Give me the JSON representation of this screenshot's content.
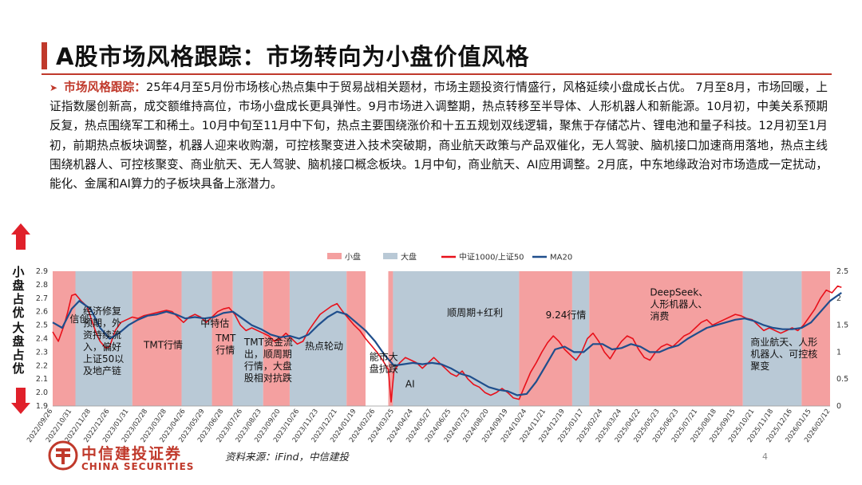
{
  "page": {
    "title": "A股市场风格跟踪：市场转向为小盘价值风格",
    "paragraph_lead": "市场风格跟踪：",
    "paragraph_body": "25年4月至5月份市场核心热点集中于贸易战相关题材，市场主题投资行情盛行，风格延续小盘成长占优。 7月至8月，市场回暖，上证指数屡创新高，成交额维持高位，市场小盘成长更具弹性。9月市场进入调整期，热点转移至半导体、人形机器人和新能源。10月初，中美关系预期反复，热点围绕军工和稀土。10月中旬至11月中下旬，热点主要围绕涨价和十五五规划双线逻辑，聚焦于存储芯片、锂电池和量子科技。12月初至1月初，前期热点板块调整，机器人迎来收购潮，可控核聚变进入技术突破期，商业航天政策与产品双催化，无人驾驶、脑机接口加速商用落地，热点主线围绕机器人、可控核聚变、商业航天、无人驾驶、脑机接口概念板块。1月中旬，商业航天、AI应用调整。2月底，中东地缘政治对市场造成一定扰动，能化、金属和AI算力的子板块具备上涨潜力。",
    "side_label_top": "小盘占优",
    "side_label_bottom": "大盘占优",
    "source": "资料来源：iFind，中信建投",
    "page_number": "4",
    "logo_cn": "中信建投证券",
    "logo_en": "CHINA SECURITIES",
    "colors": {
      "accent": "#c0392b",
      "small_cap": "#f4a0a0",
      "large_cap": "#b9c9d6",
      "ratio_line": "#e8101a",
      "ma_line": "#1f4e8c"
    }
  },
  "chart_data": {
    "type": "line",
    "legend": [
      "小盘",
      "大盘",
      "中证1000/上证50",
      "MA20"
    ],
    "legend_position": "top",
    "y_left": {
      "min": 1.9,
      "max": 2.9,
      "ticks": [
        "2.9",
        "2.8",
        "2.7",
        "2.6",
        "2.5",
        "2.4",
        "2.3",
        "2.2",
        "2.1",
        "2.0",
        "1.9"
      ]
    },
    "y_right": {
      "min": 0,
      "max": 2.5,
      "ticks": [
        "2.5",
        "2",
        "1.5",
        "1",
        "0.5",
        "0"
      ]
    },
    "x_ticks": [
      "2022/09/26",
      "2022/10/31",
      "2022/11/28",
      "2022/12/26",
      "2023/01/31",
      "2023/02/28",
      "2023/03/28",
      "2023/04/26",
      "2023/05/29",
      "2023/06/28",
      "2023/07/26",
      "2023/08/23",
      "2023/09/20",
      "2023/10/26",
      "2023/11/23",
      "2023/12/21",
      "2024/01/19",
      "2024/02/26",
      "2024/03/25",
      "2024/04/24",
      "2024/05/27",
      "2024/06/25",
      "2024/07/23",
      "2024/08/20",
      "2024/09/19",
      "2024/10/24",
      "2024/11/21",
      "2024/12/19",
      "2025/01/17",
      "2025/02/24",
      "2025/03/24",
      "2025/04/22",
      "2025/05/23",
      "2025/06/23",
      "2025/07/21",
      "2025/08/18",
      "2025/09/15",
      "2025/10/21",
      "2025/11/18",
      "2025/12/16",
      "2026/01/15",
      "2026/02/12"
    ],
    "regimes": [
      {
        "style": "small",
        "from": 0,
        "to": 1.2
      },
      {
        "style": "large",
        "from": 1.2,
        "to": 4.2
      },
      {
        "style": "small",
        "from": 4.2,
        "to": 6.8
      },
      {
        "style": "large",
        "from": 6.8,
        "to": 8.4
      },
      {
        "style": "small",
        "from": 8.4,
        "to": 9.5
      },
      {
        "style": "large",
        "from": 9.5,
        "to": 11.1
      },
      {
        "style": "small",
        "from": 11.1,
        "to": 12.5
      },
      {
        "style": "large",
        "from": 12.5,
        "to": 15.5
      },
      {
        "style": "small",
        "from": 15.5,
        "to": 16.5
      },
      {
        "style": "small",
        "from": 17.7,
        "to": 17.95
      },
      {
        "style": "large",
        "from": 17.95,
        "to": 24.6
      },
      {
        "style": "small",
        "from": 24.6,
        "to": 27.4
      },
      {
        "style": "large",
        "from": 27.4,
        "to": 28.3
      },
      {
        "style": "small",
        "from": 28.3,
        "to": 36.4
      },
      {
        "style": "large",
        "from": 36.4,
        "to": 39.5
      },
      {
        "style": "small",
        "from": 39.5,
        "to": 41.5
      }
    ],
    "series": [
      {
        "name": "中证1000/上证50",
        "axis": "left",
        "values": [
          [
            0,
            2.45
          ],
          [
            0.3,
            2.38
          ],
          [
            0.6,
            2.5
          ],
          [
            0.8,
            2.6
          ],
          [
            1.0,
            2.72
          ],
          [
            1.2,
            2.73
          ],
          [
            1.5,
            2.68
          ],
          [
            1.8,
            2.64
          ],
          [
            2.0,
            2.56
          ],
          [
            2.3,
            2.44
          ],
          [
            2.5,
            2.38
          ],
          [
            2.8,
            2.33
          ],
          [
            3.0,
            2.34
          ],
          [
            3.3,
            2.46
          ],
          [
            3.6,
            2.52
          ],
          [
            3.9,
            2.54
          ],
          [
            4.2,
            2.56
          ],
          [
            4.5,
            2.55
          ],
          [
            4.8,
            2.57
          ],
          [
            5.1,
            2.58
          ],
          [
            5.4,
            2.59
          ],
          [
            5.7,
            2.6
          ],
          [
            6.0,
            2.61
          ],
          [
            6.3,
            2.6
          ],
          [
            6.6,
            2.56
          ],
          [
            6.9,
            2.52
          ],
          [
            7.2,
            2.56
          ],
          [
            7.5,
            2.58
          ],
          [
            7.8,
            2.56
          ],
          [
            8.1,
            2.52
          ],
          [
            8.4,
            2.56
          ],
          [
            8.7,
            2.6
          ],
          [
            9.0,
            2.62
          ],
          [
            9.3,
            2.63
          ],
          [
            9.6,
            2.58
          ],
          [
            9.9,
            2.5
          ],
          [
            10.2,
            2.46
          ],
          [
            10.5,
            2.48
          ],
          [
            10.8,
            2.46
          ],
          [
            11.1,
            2.44
          ],
          [
            11.4,
            2.42
          ],
          [
            11.7,
            2.38
          ],
          [
            12.0,
            2.4
          ],
          [
            12.3,
            2.44
          ],
          [
            12.6,
            2.4
          ],
          [
            12.9,
            2.36
          ],
          [
            13.2,
            2.38
          ],
          [
            13.5,
            2.46
          ],
          [
            13.8,
            2.52
          ],
          [
            14.1,
            2.58
          ],
          [
            14.4,
            2.61
          ],
          [
            14.7,
            2.64
          ],
          [
            15.0,
            2.66
          ],
          [
            15.3,
            2.6
          ],
          [
            15.6,
            2.55
          ],
          [
            15.9,
            2.5
          ],
          [
            16.2,
            2.46
          ],
          [
            16.5,
            2.4
          ],
          [
            16.8,
            2.35
          ],
          [
            17.1,
            2.3
          ],
          [
            17.4,
            2.24
          ],
          [
            17.7,
            2.17
          ],
          [
            17.85,
            1.93
          ],
          [
            18.0,
            2.16
          ],
          [
            18.3,
            2.22
          ],
          [
            18.6,
            2.26
          ],
          [
            18.9,
            2.24
          ],
          [
            19.2,
            2.22
          ],
          [
            19.5,
            2.18
          ],
          [
            19.8,
            2.22
          ],
          [
            20.1,
            2.26
          ],
          [
            20.4,
            2.22
          ],
          [
            20.7,
            2.18
          ],
          [
            21.0,
            2.14
          ],
          [
            21.3,
            2.12
          ],
          [
            21.6,
            2.16
          ],
          [
            21.9,
            2.1
          ],
          [
            22.2,
            2.06
          ],
          [
            22.5,
            2.04
          ],
          [
            22.8,
            2.0
          ],
          [
            23.1,
            1.98
          ],
          [
            23.4,
            2.0
          ],
          [
            23.7,
            2.03
          ],
          [
            24.0,
            2.0
          ],
          [
            24.3,
            1.96
          ],
          [
            24.6,
            1.95
          ],
          [
            24.9,
            2.05
          ],
          [
            25.2,
            2.15
          ],
          [
            25.5,
            2.22
          ],
          [
            25.8,
            2.3
          ],
          [
            26.1,
            2.37
          ],
          [
            26.4,
            2.42
          ],
          [
            26.7,
            2.38
          ],
          [
            27.0,
            2.32
          ],
          [
            27.3,
            2.28
          ],
          [
            27.6,
            2.24
          ],
          [
            27.9,
            2.3
          ],
          [
            28.2,
            2.4
          ],
          [
            28.5,
            2.44
          ],
          [
            28.8,
            2.38
          ],
          [
            29.1,
            2.3
          ],
          [
            29.4,
            2.25
          ],
          [
            29.7,
            2.32
          ],
          [
            30.0,
            2.38
          ],
          [
            30.3,
            2.42
          ],
          [
            30.6,
            2.4
          ],
          [
            30.9,
            2.32
          ],
          [
            31.2,
            2.26
          ],
          [
            31.5,
            2.24
          ],
          [
            31.8,
            2.3
          ],
          [
            32.1,
            2.34
          ],
          [
            32.4,
            2.36
          ],
          [
            32.7,
            2.34
          ],
          [
            33.0,
            2.38
          ],
          [
            33.3,
            2.42
          ],
          [
            33.6,
            2.44
          ],
          [
            33.9,
            2.48
          ],
          [
            34.2,
            2.52
          ],
          [
            34.5,
            2.54
          ],
          [
            34.8,
            2.5
          ],
          [
            35.1,
            2.52
          ],
          [
            35.4,
            2.54
          ],
          [
            35.7,
            2.56
          ],
          [
            36.0,
            2.58
          ],
          [
            36.3,
            2.57
          ],
          [
            36.6,
            2.55
          ],
          [
            36.9,
            2.54
          ],
          [
            37.2,
            2.5
          ],
          [
            37.5,
            2.46
          ],
          [
            37.8,
            2.48
          ],
          [
            38.1,
            2.46
          ],
          [
            38.4,
            2.44
          ],
          [
            38.7,
            2.46
          ],
          [
            39.0,
            2.48
          ],
          [
            39.3,
            2.46
          ],
          [
            39.6,
            2.5
          ],
          [
            39.9,
            2.56
          ],
          [
            40.2,
            2.62
          ],
          [
            40.5,
            2.7
          ],
          [
            40.8,
            2.76
          ],
          [
            41.1,
            2.74
          ],
          [
            41.4,
            2.79
          ],
          [
            41.6,
            2.78
          ]
        ]
      },
      {
        "name": "MA20",
        "axis": "left",
        "values": [
          [
            0,
            2.52
          ],
          [
            0.5,
            2.48
          ],
          [
            1.0,
            2.62
          ],
          [
            1.4,
            2.68
          ],
          [
            2.0,
            2.62
          ],
          [
            2.5,
            2.48
          ],
          [
            3.0,
            2.4
          ],
          [
            3.5,
            2.44
          ],
          [
            4.0,
            2.5
          ],
          [
            4.5,
            2.54
          ],
          [
            5.0,
            2.57
          ],
          [
            5.5,
            2.58
          ],
          [
            6.0,
            2.6
          ],
          [
            6.5,
            2.58
          ],
          [
            7.0,
            2.55
          ],
          [
            7.5,
            2.56
          ],
          [
            8.0,
            2.55
          ],
          [
            8.5,
            2.56
          ],
          [
            9.0,
            2.59
          ],
          [
            9.5,
            2.6
          ],
          [
            10.0,
            2.55
          ],
          [
            10.5,
            2.5
          ],
          [
            11.0,
            2.47
          ],
          [
            11.5,
            2.43
          ],
          [
            12.0,
            2.41
          ],
          [
            12.5,
            2.42
          ],
          [
            13.0,
            2.4
          ],
          [
            13.5,
            2.43
          ],
          [
            14.0,
            2.5
          ],
          [
            14.5,
            2.56
          ],
          [
            15.0,
            2.6
          ],
          [
            15.5,
            2.58
          ],
          [
            16.0,
            2.52
          ],
          [
            16.5,
            2.46
          ],
          [
            17.0,
            2.38
          ],
          [
            17.5,
            2.28
          ],
          [
            18.0,
            2.2
          ],
          [
            18.5,
            2.21
          ],
          [
            19.0,
            2.22
          ],
          [
            19.5,
            2.21
          ],
          [
            20.0,
            2.22
          ],
          [
            20.5,
            2.21
          ],
          [
            21.0,
            2.18
          ],
          [
            21.5,
            2.14
          ],
          [
            22.0,
            2.12
          ],
          [
            22.5,
            2.08
          ],
          [
            23.0,
            2.04
          ],
          [
            23.5,
            2.02
          ],
          [
            24.0,
            2.01
          ],
          [
            24.5,
            1.98
          ],
          [
            25.0,
            1.99
          ],
          [
            25.5,
            2.08
          ],
          [
            26.0,
            2.2
          ],
          [
            26.5,
            2.32
          ],
          [
            27.0,
            2.34
          ],
          [
            27.5,
            2.3
          ],
          [
            28.0,
            2.3
          ],
          [
            28.5,
            2.36
          ],
          [
            29.0,
            2.36
          ],
          [
            29.5,
            2.32
          ],
          [
            30.0,
            2.33
          ],
          [
            30.5,
            2.36
          ],
          [
            31.0,
            2.34
          ],
          [
            31.5,
            2.3
          ],
          [
            32.0,
            2.3
          ],
          [
            32.5,
            2.33
          ],
          [
            33.0,
            2.35
          ],
          [
            33.5,
            2.4
          ],
          [
            34.0,
            2.44
          ],
          [
            34.5,
            2.48
          ],
          [
            35.0,
            2.5
          ],
          [
            35.5,
            2.52
          ],
          [
            36.0,
            2.54
          ],
          [
            36.5,
            2.55
          ],
          [
            37.0,
            2.53
          ],
          [
            37.5,
            2.5
          ],
          [
            38.0,
            2.48
          ],
          [
            38.5,
            2.47
          ],
          [
            39.0,
            2.47
          ],
          [
            39.5,
            2.48
          ],
          [
            40.0,
            2.52
          ],
          [
            40.5,
            2.6
          ],
          [
            41.0,
            2.68
          ],
          [
            41.6,
            2.74
          ]
        ]
      }
    ],
    "annotations": [
      {
        "text": "信创",
        "x": 0.9,
        "y": 2.52
      },
      {
        "text": "经济修复\n预期，外\n资持续流\n入，偏好\n上证50以\n及地产链",
        "x": 1.6,
        "y": 2.58
      },
      {
        "text": "TMT行情",
        "x": 4.8,
        "y": 2.33
      },
      {
        "text": "中特估",
        "x": 7.8,
        "y": 2.49
      },
      {
        "text": "TMT\n行情",
        "x": 8.6,
        "y": 2.38
      },
      {
        "text": "TMT资金流\n出，顺周期\n行情，大盘\n股相对抗跌",
        "x": 10.1,
        "y": 2.35
      },
      {
        "text": "热点轮动",
        "x": 13.3,
        "y": 2.32
      },
      {
        "text": "能市大\n盘抗跌",
        "x": 16.7,
        "y": 2.24
      },
      {
        "text": "AI",
        "x": 18.6,
        "y": 2.04
      },
      {
        "text": "顺周期+红利",
        "x": 20.8,
        "y": 2.57
      },
      {
        "text": "9.24行情",
        "x": 26.0,
        "y": 2.55
      },
      {
        "text": "DeepSeek、\n人形机器人、\n消费",
        "x": 31.5,
        "y": 2.72
      },
      {
        "text": "商业航天、人形\n机器人、可控核\n聚变",
        "x": 36.8,
        "y": 2.35
      }
    ]
  }
}
